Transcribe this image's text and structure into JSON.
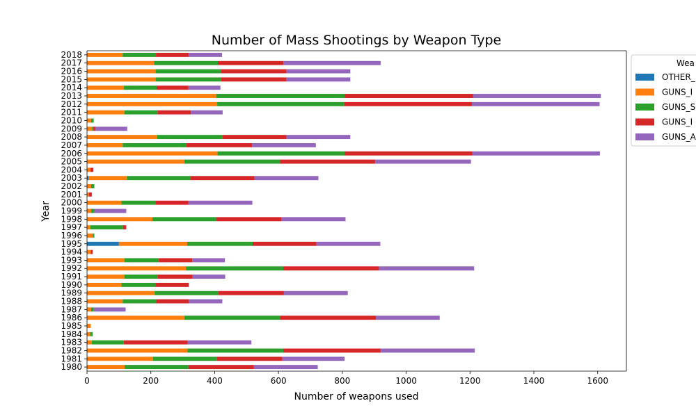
{
  "chart_data": {
    "type": "bar",
    "orientation": "horizontal",
    "stacked": true,
    "title": "Number of Mass Shootings by Weapon Type",
    "xlabel": "Number of weapons used",
    "ylabel": "Year",
    "xlim": [
      0,
      1690
    ],
    "xticks": [
      0,
      200,
      400,
      600,
      800,
      1000,
      1200,
      1400,
      1600
    ],
    "grid": false,
    "legend_position": "upper right, outside plot (clipped)",
    "legend_title": "Wea",
    "categories": [
      "1980",
      "1981",
      "1982",
      "1983",
      "1984",
      "1985",
      "1986",
      "1987",
      "1988",
      "1989",
      "1990",
      "1991",
      "1992",
      "1993",
      "1994",
      "1995",
      "1996",
      "1997",
      "1998",
      "1999",
      "2000",
      "2001",
      "2002",
      "2003",
      "2004",
      "2005",
      "2006",
      "2007",
      "2008",
      "2009",
      "2010",
      "2011",
      "2012",
      "2013",
      "2014",
      "2015",
      "2016",
      "2017",
      "2018"
    ],
    "series": [
      {
        "name": "OTHER_",
        "color": "#1f77b4",
        "values": [
          0,
          0,
          0,
          2,
          0,
          0,
          0,
          0,
          0,
          0,
          0,
          0,
          0,
          0,
          0,
          100,
          0,
          0,
          0,
          0,
          0,
          0,
          0,
          5,
          0,
          0,
          0,
          0,
          0,
          0,
          0,
          0,
          0,
          0,
          0,
          0,
          0,
          0,
          0
        ]
      },
      {
        "name": "GUNS_I",
        "color": "#ff7f0e",
        "values": [
          118,
          207,
          315,
          13,
          10,
          12,
          305,
          13,
          112,
          212,
          108,
          117,
          310,
          117,
          12,
          214,
          18,
          11,
          205,
          13,
          108,
          6,
          13,
          120,
          11,
          305,
          409,
          112,
          220,
          16,
          13,
          117,
          408,
          405,
          115,
          215,
          215,
          210,
          112
        ]
      },
      {
        "name": "GUNS_S",
        "color": "#2ca02c",
        "values": [
          200,
          200,
          300,
          100,
          8,
          0,
          300,
          8,
          105,
          200,
          106,
          104,
          305,
          108,
          0,
          205,
          5,
          102,
          200,
          10,
          106,
          0,
          10,
          200,
          0,
          300,
          398,
          200,
          205,
          4,
          8,
          104,
          398,
          403,
          103,
          205,
          205,
          200,
          104
        ]
      },
      {
        "name": "GUNS_I",
        "color": "#d62728",
        "values": [
          205,
          205,
          305,
          200,
          0,
          0,
          300,
          0,
          103,
          205,
          105,
          110,
          300,
          105,
          6,
          200,
          0,
          10,
          205,
          0,
          104,
          9,
          0,
          200,
          9,
          298,
          400,
          205,
          200,
          6,
          0,
          104,
          400,
          402,
          100,
          205,
          205,
          205,
          103
        ]
      },
      {
        "name": "GUNS_A",
        "color": "#9467bd",
        "values": [
          200,
          195,
          295,
          200,
          0,
          0,
          200,
          100,
          104,
          200,
          0,
          102,
          298,
          102,
          0,
          200,
          0,
          0,
          200,
          100,
          200,
          0,
          0,
          200,
          0,
          300,
          400,
          200,
          200,
          100,
          0,
          100,
          400,
          400,
          100,
          200,
          200,
          305,
          104
        ]
      }
    ]
  }
}
